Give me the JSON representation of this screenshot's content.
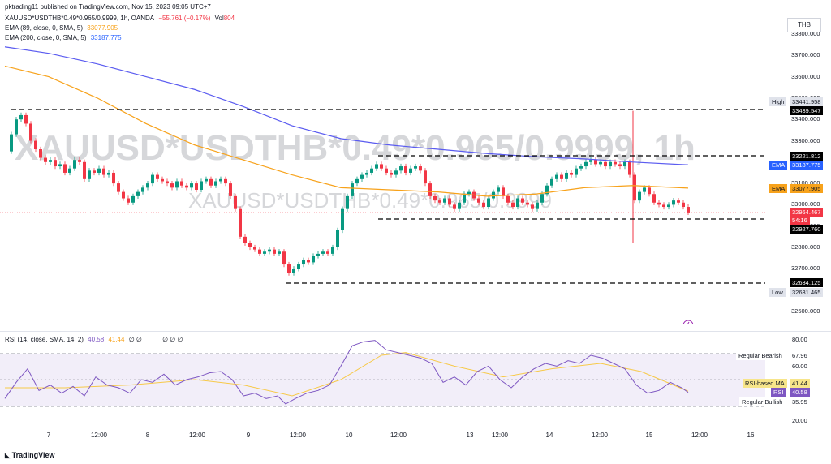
{
  "header": {
    "published": "pktrading11 published on TradingView.com, Nov 15, 2023 09:05 UTC+7",
    "symbol": "XAUUSD*USDTHB*0.49*0.965/0.9999, 1h, OANDA",
    "change": "−55.761 (−0.17%)",
    "vol_label": "Vol",
    "vol_value": "804",
    "ema89_label": "EMA (89, close, 0, SMA, 5)",
    "ema89_value": "33077.905",
    "ema200_label": "EMA (200, close, 0, SMA, 5)",
    "ema200_value": "33187.775",
    "currency": "THB"
  },
  "watermark": {
    "main": "XAUUSD*USDTHB*0.49*0.965/0.9999, 1h",
    "sub": "XAUUSD*USDTHB*0.49*0.965/0.9999"
  },
  "price_axis": {
    "ticks": [
      "33800.000",
      "33700.000",
      "33600.000",
      "33500.000",
      "33400.000",
      "33300.000",
      "33200.000",
      "33100.000",
      "33000.000",
      "32900.000",
      "32800.000",
      "32700.000",
      "32600.000",
      "32500.000"
    ]
  },
  "price_labels": {
    "high_tag": "High",
    "high_value": "33441.958",
    "level1": "33439.547",
    "level2": "33221.812",
    "ema_tag": "EMA",
    "ema200_value": "33187.775",
    "ema89_value": "33077.905",
    "last_price": "32964.467",
    "countdown": "54:16",
    "level3": "32927.760",
    "level4": "32634.125",
    "low_tag": "Low",
    "low_value": "32631.465"
  },
  "rsi": {
    "header": "RSI (14, close, SMA, 14, 2)",
    "rsi_value": "40.58",
    "ma_value": "41.44",
    "extra": "∅ ∅",
    "extra2": "∅ ∅ ∅",
    "ticks": [
      "80.00",
      "60.00",
      "40.00",
      "20.00"
    ],
    "bearish_label": "Regular Bearish",
    "bearish_value": "67.96",
    "bullish_label": "Regular Bullish",
    "bullish_value": "35.95",
    "ma_tag": "RSI-based MA",
    "rsi_tag": "RSI"
  },
  "time_axis": {
    "ticks": [
      "7",
      "12:00",
      "8",
      "12:00",
      "9",
      "12:00",
      "10",
      "12:00",
      "13",
      "12:00",
      "14",
      "12:00",
      "15",
      "12:00",
      "16"
    ]
  },
  "footer": {
    "brand": "TradingView"
  },
  "colors": {
    "up": "#089981",
    "down": "#f23645",
    "ema89": "#f7a21b",
    "ema200": "#5b5cf0",
    "rsi": "#7e57c2"
  }
}
